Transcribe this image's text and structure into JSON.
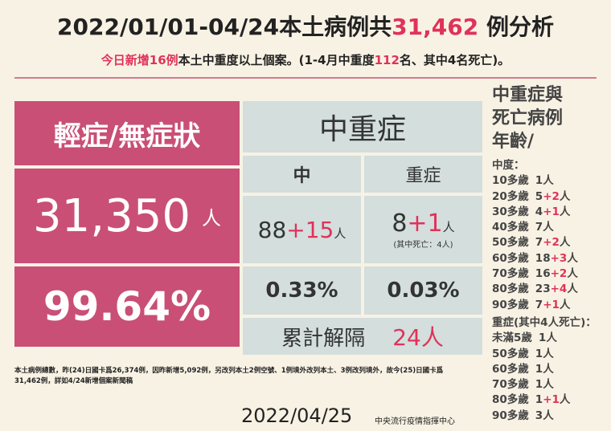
{
  "header": {
    "title": {
      "before": "2022/01/01-04/24本土病例共",
      "count": "31,462",
      "after": " 例分析"
    },
    "subtitle": {
      "p1": "今日新增16例",
      "p2": "本土中重度以上個案。(1-4月中重度",
      "p3": "112",
      "p4": "名、其中4名死亡)。"
    }
  },
  "mild": {
    "label": "輕症/無症狀",
    "count": "31,350",
    "unit": "人",
    "percent": "99.64%"
  },
  "severe": {
    "label": "中重症",
    "moderate": {
      "label": "中",
      "base": "88",
      "add": "+15",
      "unit": "人",
      "percent": "0.33%"
    },
    "critical": {
      "label": "重症",
      "base": "8",
      "add": "+1",
      "unit": "人",
      "note": "(其中死亡：4人)",
      "percent": "0.03%"
    },
    "released": {
      "label": "累計解隔",
      "count": "24人"
    }
  },
  "ages": {
    "title": [
      "中重症與",
      "死亡病例",
      "年齡/"
    ],
    "moderate_title": "中度：",
    "moderate": [
      {
        "age": "10多歲",
        "base": "1",
        "unit": "人"
      },
      {
        "age": "20多歲",
        "base": "5",
        "add": "+2",
        "unit": "人"
      },
      {
        "age": "30多歲",
        "base": "4",
        "add": "+1",
        "unit": "人"
      },
      {
        "age": "40多歲",
        "base": "7",
        "unit": "人"
      },
      {
        "age": "50多歲",
        "base": "7",
        "add": "+2",
        "unit": "人"
      },
      {
        "age": "60多歲",
        "base": "18",
        "add": "+3",
        "unit": "人"
      },
      {
        "age": "70多歲",
        "base": "16",
        "add": "+2",
        "unit": "人"
      },
      {
        "age": "80多歲",
        "base": "23",
        "add": "+4",
        "unit": "人"
      },
      {
        "age": "90多歲",
        "base": "7",
        "add": "+1",
        "unit": "人"
      }
    ],
    "critical_title": "重症(其中4人死亡)：",
    "critical": [
      {
        "age": "未滿5歲",
        "base": "1",
        "unit": "人"
      },
      {
        "age": "50多歲",
        "base": "1",
        "unit": "人"
      },
      {
        "age": "60多歲",
        "base": "1",
        "unit": "人"
      },
      {
        "age": "70多歲",
        "base": "1",
        "unit": "人"
      },
      {
        "age": "80多歲",
        "base": "1",
        "add": "+1",
        "unit": "人"
      },
      {
        "age": "90多歲",
        "base": "3",
        "unit": "人"
      }
    ]
  },
  "footer": {
    "note": [
      "本土病例總數，昨(24)日國卡爲26,374例，因昨新增5,092例，另改列本土2例空號、1例境外改列本土、3例改列境外，故今(25)日國卡爲",
      "31,462例，詳如4/24新增個案新聞稿"
    ],
    "date": "2022/04/25",
    "agency": "中央流行疫情指揮中心"
  }
}
